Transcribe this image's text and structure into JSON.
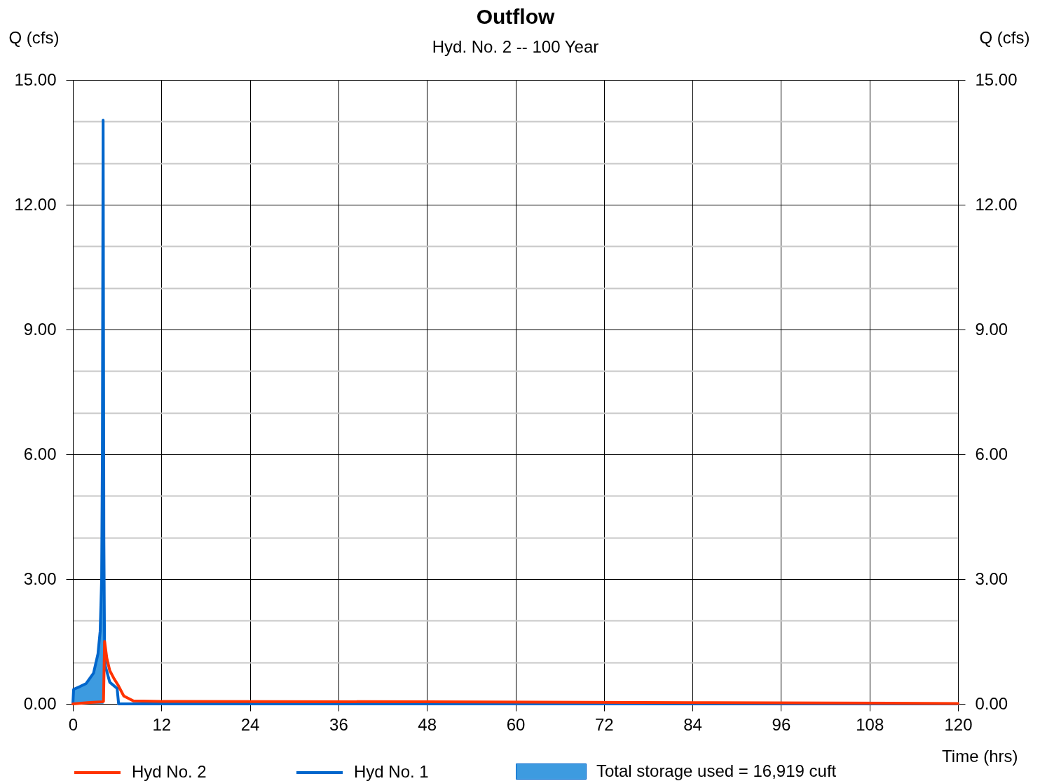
{
  "chart_data": {
    "type": "line",
    "title": "Outflow",
    "subtitle": "Hyd. No. 2 -- 100 Year",
    "xlabel": "Time (hrs)",
    "ylabel": "Q (cfs)",
    "y2label": "Q (cfs)",
    "xlim": [
      0,
      120
    ],
    "xticks": [
      0,
      12,
      24,
      36,
      48,
      60,
      72,
      84,
      96,
      108,
      120
    ],
    "ylim": [
      0,
      15
    ],
    "yticks": [
      {
        "value": 0,
        "label": "0.00"
      },
      {
        "value": 1,
        "label": null
      },
      {
        "value": 2,
        "label": null
      },
      {
        "value": 3,
        "label": "3.00"
      },
      {
        "value": 4,
        "label": null
      },
      {
        "value": 5,
        "label": null
      },
      {
        "value": 6,
        "label": "6.00"
      },
      {
        "value": 7,
        "label": null
      },
      {
        "value": 8,
        "label": null
      },
      {
        "value": 9,
        "label": "9.00"
      },
      {
        "value": 10,
        "label": null
      },
      {
        "value": 11,
        "label": null
      },
      {
        "value": 12,
        "label": "12.00"
      },
      {
        "value": 13,
        "label": null
      },
      {
        "value": 14,
        "label": null
      },
      {
        "value": 15,
        "label": "15.00"
      }
    ],
    "y2lim": [
      0,
      15
    ],
    "y2ticks": [
      {
        "value": 0,
        "label": "0.00"
      },
      {
        "value": 3,
        "label": "3.00"
      },
      {
        "value": 6,
        "label": "6.00"
      },
      {
        "value": 9,
        "label": "9.00"
      },
      {
        "value": 12,
        "label": "12.00"
      },
      {
        "value": 15,
        "label": "15.00"
      }
    ],
    "grid": true,
    "legend": "bottom",
    "line_style": "solid",
    "series": [
      {
        "name": "Hyd No. 2",
        "color": "#ff3300",
        "x": [
          0,
          2,
          4.0,
          4.15,
          4.3,
          4.6,
          5.0,
          5.6,
          6.1,
          6.9,
          8.2,
          12,
          48,
          84,
          120
        ],
        "values": [
          0,
          0.03,
          0.05,
          0.06,
          1.5,
          1.1,
          0.8,
          0.6,
          0.46,
          0.19,
          0.07,
          0.06,
          0.05,
          0.03,
          0.01
        ]
      },
      {
        "name": "Hyd No. 1",
        "color": "#0066cc",
        "x": [
          0,
          0.1,
          1,
          1.8,
          2.8,
          3.4,
          3.7,
          3.9,
          4.0,
          4.1,
          4.2,
          4.3,
          4.4,
          5.0,
          6.0,
          6.2,
          120
        ],
        "values": [
          0,
          0.35,
          0.42,
          0.49,
          0.74,
          1.2,
          1.75,
          3.0,
          6.0,
          14.03,
          4.0,
          1.2,
          0.91,
          0.52,
          0.37,
          0,
          0
        ]
      },
      {
        "name": "Total storage used = 16,919 cuft",
        "type": "area",
        "color": "#3d9be0",
        "x": [
          0.1,
          1,
          1.8,
          2.8,
          3.4,
          3.7,
          3.9,
          4.0,
          4.1,
          4.15
        ],
        "values": [
          0.35,
          0.42,
          0.49,
          0.74,
          1.2,
          1.75,
          3.0,
          6.0,
          14.03,
          0.06
        ]
      }
    ]
  }
}
